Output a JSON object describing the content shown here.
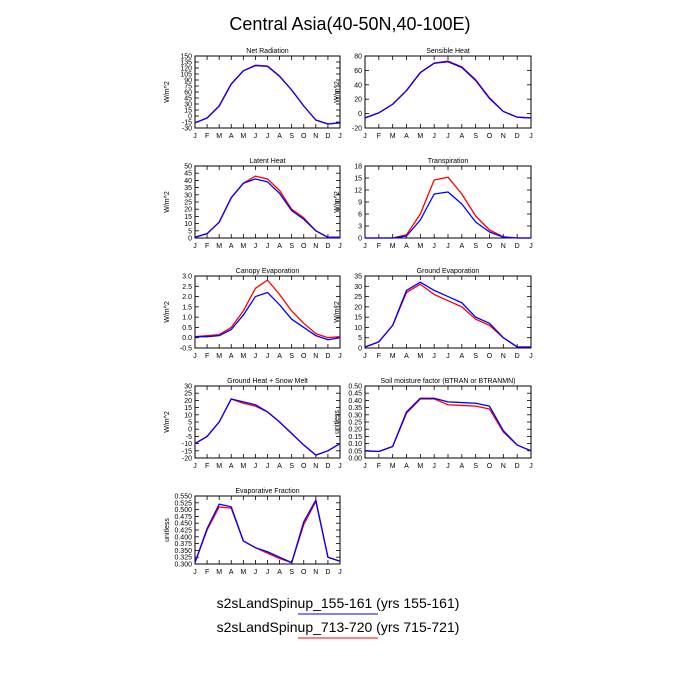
{
  "title": "Central Asia(40-50N,40-100E)",
  "months": [
    "J",
    "F",
    "M",
    "A",
    "M",
    "J",
    "J",
    "A",
    "S",
    "O",
    "N",
    "D",
    "J"
  ],
  "series_colors": [
    "#ff0000",
    "#0000ff"
  ],
  "legend": [
    {
      "text": "s2sLandSpinup_155-161 (yrs 155-161)",
      "color": "#0000ff"
    },
    {
      "text": "s2sLandSpinup_713-720 (yrs 715-721)",
      "color": "#ff0000"
    }
  ],
  "chart_data": [
    {
      "type": "line",
      "title": "Net Radiation",
      "ylabel": "W/m^2",
      "ylim": [
        -30,
        150
      ],
      "yticks": [
        -30,
        -15,
        0,
        15,
        30,
        45,
        60,
        75,
        90,
        105,
        120,
        135,
        150
      ],
      "series": [
        {
          "values": [
            -17,
            -5,
            25,
            80,
            113,
            127,
            125,
            100,
            65,
            25,
            -10,
            -20,
            -17
          ]
        },
        {
          "values": [
            -17,
            -5,
            25,
            80,
            113,
            126,
            124,
            99,
            65,
            25,
            -10,
            -20,
            -17
          ]
        }
      ]
    },
    {
      "type": "line",
      "title": "Sensible Heat",
      "ylabel": "W/m^2",
      "ylim": [
        -20,
        80
      ],
      "yticks": [
        -20,
        0,
        20,
        40,
        60,
        80
      ],
      "series": [
        {
          "values": [
            -6,
            1,
            13,
            32,
            57,
            70,
            73,
            65,
            47,
            22,
            3,
            -5,
            -6
          ]
        },
        {
          "values": [
            -6,
            1,
            13,
            32,
            57,
            70,
            72,
            64,
            46,
            21,
            3,
            -5,
            -6
          ]
        }
      ]
    },
    {
      "type": "line",
      "title": "Latent Heat",
      "ylabel": "W/m^2",
      "ylim": [
        0,
        50
      ],
      "yticks": [
        0,
        5,
        10,
        15,
        20,
        25,
        30,
        35,
        40,
        45,
        50
      ],
      "series": [
        {
          "values": [
            0.5,
            3,
            11,
            28,
            38,
            43,
            41,
            33,
            20,
            14,
            5,
            0.5,
            0.5
          ]
        },
        {
          "values": [
            0.5,
            3,
            11,
            28,
            38,
            41,
            39,
            31,
            19,
            13,
            5,
            0.5,
            0.5
          ]
        }
      ]
    },
    {
      "type": "line",
      "title": "Transpiration",
      "ylabel": "W/m^2",
      "ylim": [
        0,
        18
      ],
      "yticks": [
        0,
        3,
        6,
        9,
        12,
        15,
        18
      ],
      "series": [
        {
          "values": [
            0,
            0,
            0,
            0.8,
            6,
            14.5,
            15.2,
            11,
            5.5,
            2,
            0.3,
            0,
            0
          ]
        },
        {
          "values": [
            0,
            0,
            0,
            0.5,
            4.5,
            11,
            11.5,
            8.5,
            4,
            1.5,
            0.2,
            0,
            0
          ]
        }
      ]
    },
    {
      "type": "line",
      "title": "Canopy Evaporation",
      "ylabel": "W/m^2",
      "ylim": [
        -0.5,
        3.0
      ],
      "yticks": [
        -0.5,
        0,
        0.5,
        1.0,
        1.5,
        2.0,
        2.5,
        3.0
      ],
      "series": [
        {
          "values": [
            0.05,
            0.1,
            0.15,
            0.5,
            1.3,
            2.4,
            2.8,
            2.1,
            1.3,
            0.7,
            0.2,
            0.0,
            0.05
          ]
        },
        {
          "values": [
            0.05,
            0.05,
            0.1,
            0.4,
            1.1,
            2.0,
            2.2,
            1.6,
            0.9,
            0.5,
            0.1,
            -0.1,
            0.0
          ]
        }
      ]
    },
    {
      "type": "line",
      "title": "Ground Evaporation",
      "ylabel": "W/m^2",
      "ylim": [
        0,
        35
      ],
      "yticks": [
        0,
        5,
        10,
        15,
        20,
        25,
        30,
        35
      ],
      "series": [
        {
          "values": [
            0.5,
            3,
            11,
            27,
            31,
            26,
            23,
            20,
            14,
            11,
            5,
            0.5,
            0.5
          ]
        },
        {
          "values": [
            0.5,
            3,
            11,
            28,
            32,
            28,
            25,
            22,
            15,
            12,
            5,
            0.5,
            0.5
          ]
        }
      ]
    },
    {
      "type": "line",
      "title": "Ground Heat + Snow Melt",
      "ylabel": "W/m^2",
      "ylim": [
        -20,
        30
      ],
      "yticks": [
        -20,
        -15,
        -10,
        -5,
        0,
        5,
        10,
        15,
        20,
        25,
        30
      ],
      "series": [
        {
          "values": [
            -10,
            -5,
            5,
            21,
            18,
            16,
            12,
            5,
            -3,
            -11,
            -18,
            -15,
            -10
          ]
        },
        {
          "values": [
            -10,
            -5,
            5,
            21,
            19,
            17,
            12,
            5,
            -3,
            -11,
            -18,
            -15,
            -10
          ]
        }
      ]
    },
    {
      "type": "line",
      "title": "Soil moisture factor (BTRAN or BTRANMN)",
      "ylabel": "unitless",
      "ylim": [
        0.0,
        0.5
      ],
      "yticks": [
        0.0,
        0.05,
        0.1,
        0.15,
        0.2,
        0.25,
        0.3,
        0.35,
        0.4,
        0.45,
        0.5
      ],
      "series": [
        {
          "values": [
            0.05,
            0.045,
            0.08,
            0.31,
            0.41,
            0.41,
            0.37,
            0.365,
            0.36,
            0.34,
            0.18,
            0.09,
            0.05
          ]
        },
        {
          "values": [
            0.05,
            0.045,
            0.08,
            0.32,
            0.415,
            0.415,
            0.39,
            0.385,
            0.38,
            0.36,
            0.19,
            0.09,
            0.05
          ]
        }
      ]
    },
    {
      "type": "line",
      "title": "Evaporative Fraction",
      "ylabel": "unitless",
      "ylim": [
        0.3,
        0.55
      ],
      "yticks": [
        0.3,
        0.325,
        0.35,
        0.375,
        0.4,
        0.425,
        0.45,
        0.475,
        0.5,
        0.525,
        0.55
      ],
      "series": [
        {
          "values": [
            0.305,
            0.425,
            0.51,
            0.505,
            0.385,
            0.36,
            0.34,
            0.32,
            0.305,
            0.445,
            0.53,
            0.325,
            0.31
          ]
        },
        {
          "values": [
            0.305,
            0.43,
            0.52,
            0.51,
            0.385,
            0.36,
            0.345,
            0.325,
            0.305,
            0.455,
            0.535,
            0.325,
            0.31
          ]
        }
      ]
    }
  ]
}
